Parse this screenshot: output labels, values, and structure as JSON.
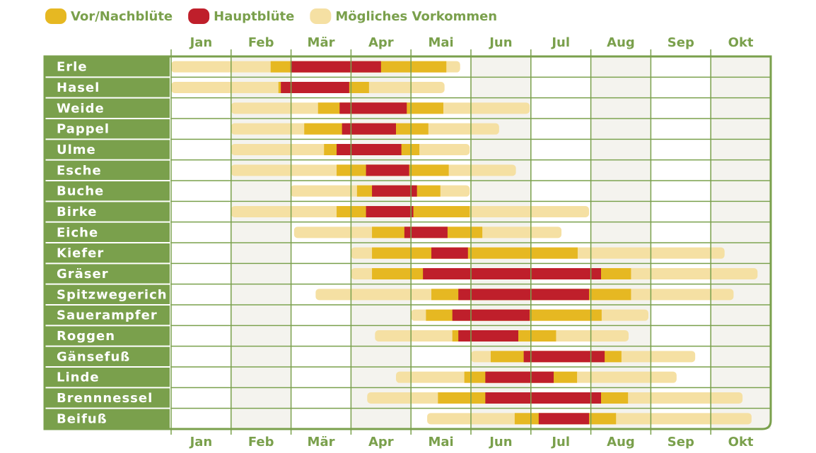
{
  "chart_data": {
    "type": "gantt",
    "series": [
      {
        "name": "Vor/Nachblüte",
        "color": "#e6b822"
      },
      {
        "name": "Hauptblüte",
        "color": "#bf1f2b"
      },
      {
        "name": "Mögliches Vorkommen",
        "color": "#f5e0a3"
      }
    ],
    "categories": [
      "Jan",
      "Feb",
      "Mär",
      "Apr",
      "Mai",
      "Jun",
      "Jul",
      "Aug",
      "Sep",
      "Okt"
    ],
    "xlim": [
      0,
      10
    ],
    "rows": [
      {
        "name": "Erle",
        "ranges": [
          [
            1.66,
            4.59
          ],
          [
            1.99,
            3.5
          ],
          [
            0,
            4.82
          ]
        ]
      },
      {
        "name": "Hasel",
        "ranges": [
          [
            1.79,
            3.3
          ],
          [
            1.83,
            2.97
          ],
          [
            0,
            4.56
          ]
        ]
      },
      {
        "name": "Weide",
        "ranges": [
          [
            2.45,
            4.54
          ],
          [
            2.81,
            3.93
          ],
          [
            1,
            5.98
          ]
        ]
      },
      {
        "name": "Pappel",
        "ranges": [
          [
            2.22,
            4.29
          ],
          [
            2.85,
            3.75
          ],
          [
            1,
            5.47
          ]
        ]
      },
      {
        "name": "Ulme",
        "ranges": [
          [
            2.55,
            4.14
          ],
          [
            2.76,
            3.84
          ],
          [
            1,
            4.98
          ]
        ]
      },
      {
        "name": "Esche",
        "ranges": [
          [
            2.76,
            4.63
          ],
          [
            3.25,
            3.97
          ],
          [
            1,
            5.75
          ]
        ]
      },
      {
        "name": "Buche",
        "ranges": [
          [
            3.1,
            4.49
          ],
          [
            3.35,
            4.1
          ],
          [
            1.99,
            4.98
          ]
        ]
      },
      {
        "name": "Birke",
        "ranges": [
          [
            2.76,
            4.98
          ],
          [
            3.25,
            4.04
          ],
          [
            1,
            6.97
          ]
        ]
      },
      {
        "name": "Eiche",
        "ranges": [
          [
            3.35,
            5.19
          ],
          [
            3.89,
            4.61
          ],
          [
            2.05,
            6.51
          ]
        ]
      },
      {
        "name": "Kiefer",
        "ranges": [
          [
            3.35,
            6.78
          ],
          [
            4.34,
            4.95
          ],
          [
            3,
            9.23
          ]
        ]
      },
      {
        "name": "Gräser",
        "ranges": [
          [
            3.35,
            7.67
          ],
          [
            4.2,
            7.17
          ],
          [
            3,
            9.78
          ]
        ]
      },
      {
        "name": "Spitzwegerich",
        "ranges": [
          [
            4.34,
            7.67
          ],
          [
            4.79,
            6.97
          ],
          [
            2.41,
            9.38
          ]
        ]
      },
      {
        "name": "Sauerampfer",
        "ranges": [
          [
            4.25,
            7.18
          ],
          [
            4.69,
            5.98
          ],
          [
            4,
            7.96
          ]
        ]
      },
      {
        "name": "Roggen",
        "ranges": [
          [
            4.69,
            6.42
          ],
          [
            4.79,
            5.79
          ],
          [
            3.4,
            7.63
          ]
        ]
      },
      {
        "name": "Gänsefuß",
        "ranges": [
          [
            5.33,
            7.51
          ],
          [
            5.88,
            7.23
          ],
          [
            5,
            8.74
          ]
        ]
      },
      {
        "name": "Linde",
        "ranges": [
          [
            4.89,
            6.77
          ],
          [
            5.24,
            6.38
          ],
          [
            3.75,
            8.43
          ]
        ]
      },
      {
        "name": "Brennnessel",
        "ranges": [
          [
            4.45,
            7.62
          ],
          [
            5.24,
            7.17
          ],
          [
            3.27,
            9.53
          ]
        ]
      },
      {
        "name": "Beifuß",
        "ranges": [
          [
            5.73,
            7.42
          ],
          [
            6.13,
            6.97
          ],
          [
            4.27,
            9.68
          ]
        ]
      }
    ]
  }
}
